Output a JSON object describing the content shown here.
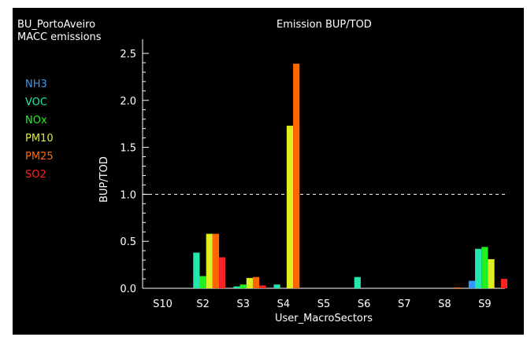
{
  "header": {
    "location": "BU_PortoAveiro",
    "dataset": "MACC emissions",
    "title": "Emission BUP/TOD"
  },
  "legend": [
    {
      "name": "NH3",
      "color": "#3399ff"
    },
    {
      "name": "VOC",
      "color": "#22e8b0"
    },
    {
      "name": "NOx",
      "color": "#22ee22"
    },
    {
      "name": "PM10",
      "color": "#ddee22"
    },
    {
      "name": "PM25",
      "color": "#ff6600"
    },
    {
      "name": "SO2",
      "color": "#ff2222"
    }
  ],
  "chart_data": {
    "type": "bar",
    "title": "Emission BUP/TOD",
    "xlabel": "User_MacroSectors",
    "ylabel": "BUP/TOD",
    "ylim": [
      0,
      2.65
    ],
    "yticks": [
      "0.0",
      "0.5",
      "1.0",
      "1.5",
      "2.0",
      "2.5"
    ],
    "reference_line": 1.0,
    "categories": [
      "S10",
      "S2",
      "S3",
      "S4",
      "S5",
      "S6",
      "S7",
      "S8",
      "S9"
    ],
    "series": [
      {
        "name": "NH3",
        "color": "#3399ff",
        "values": [
          0,
          0,
          0,
          0,
          0,
          0,
          0,
          0,
          0.08
        ]
      },
      {
        "name": "VOC",
        "color": "#22e8b0",
        "values": [
          0,
          0.38,
          0.02,
          0.04,
          0,
          0.12,
          0,
          0,
          0.42
        ]
      },
      {
        "name": "NOx",
        "color": "#22ee22",
        "values": [
          0,
          0.13,
          0.04,
          0,
          0,
          0,
          0,
          0,
          0.44
        ]
      },
      {
        "name": "PM10",
        "color": "#ddee22",
        "values": [
          0,
          0.58,
          0.11,
          1.73,
          0,
          0,
          0,
          0,
          0.31
        ]
      },
      {
        "name": "PM25",
        "color": "#ff6600",
        "values": [
          0,
          0.58,
          0.12,
          2.39,
          0,
          0,
          0,
          0.01,
          0
        ]
      },
      {
        "name": "SO2",
        "color": "#ff2222",
        "values": [
          0,
          0.33,
          0.03,
          0,
          0,
          0,
          0,
          0,
          0.1
        ]
      }
    ]
  }
}
